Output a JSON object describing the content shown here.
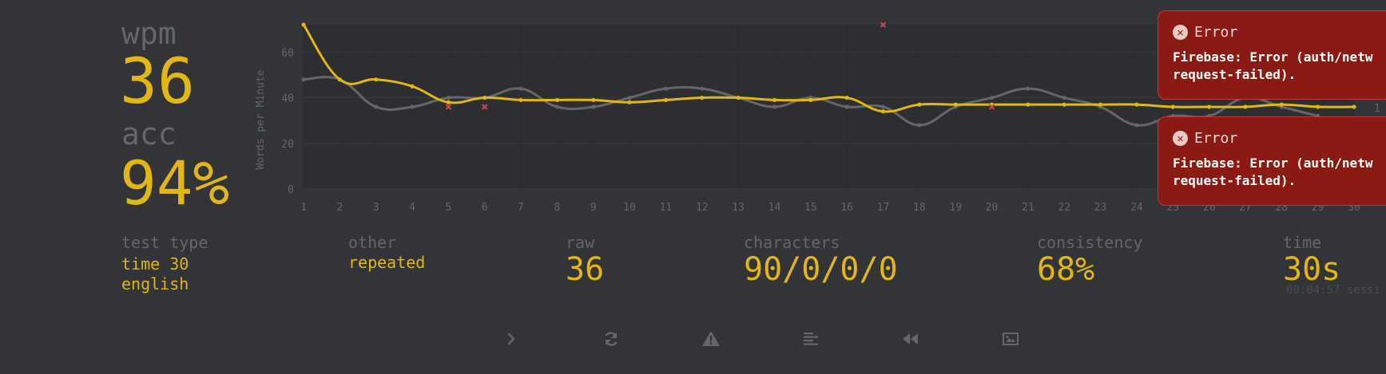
{
  "stats": {
    "wpm_label": "wpm",
    "wpm_value": "36",
    "acc_label": "acc",
    "acc_value": "94%"
  },
  "details": {
    "test_type_label": "test type",
    "test_type_line1": "time 30",
    "test_type_line2": "english",
    "other_label": "other",
    "other_value": "repeated",
    "raw_label": "raw",
    "raw_value": "36",
    "characters_label": "characters",
    "characters_value": "90/0/0/0",
    "consistency_label": "consistency",
    "consistency_value": "68%",
    "time_label": "time",
    "time_value": "30s",
    "session_text": "00:04:57 sessi"
  },
  "toolbar": {
    "icons": [
      "next-test-icon",
      "restart-icon",
      "report-icon",
      "words-history-icon",
      "replay-icon",
      "screenshot-icon"
    ]
  },
  "toasts": [
    {
      "title": "Error",
      "message": "Firebase: Error (auth/netw\nrequest-failed)."
    },
    {
      "title": "Error",
      "message": "Firebase: Error (auth/netw\nrequest-failed)."
    }
  ],
  "colors": {
    "background": "#323437",
    "accent": "#e2b714",
    "sub": "#646669",
    "error": "#ca4754",
    "toast_bg": "#8b1a15"
  },
  "chart_data": {
    "type": "line",
    "ylabel": "Words per Minute",
    "x": [
      1,
      2,
      3,
      4,
      5,
      6,
      7,
      8,
      9,
      10,
      11,
      12,
      13,
      14,
      15,
      16,
      17,
      18,
      19,
      20,
      21,
      22,
      23,
      24,
      25,
      26,
      27,
      28,
      29,
      30
    ],
    "ylim": [
      0,
      72
    ],
    "yticks": [
      0,
      20,
      40,
      60
    ],
    "right_tick": "1",
    "series": [
      {
        "name": "",
        "role": "raw",
        "color": "#646669",
        "values": [
          48,
          48,
          36,
          36,
          40,
          40,
          44,
          36,
          36,
          40,
          44,
          44,
          40,
          36,
          40,
          36,
          36,
          28,
          36,
          40,
          44,
          40,
          36,
          28,
          32,
          32,
          40,
          36,
          32,
          null
        ]
      },
      {
        "name": "",
        "role": "wpm",
        "color": "#e2b714",
        "values": [
          72,
          48,
          48,
          45,
          38,
          40,
          39,
          39,
          39,
          38,
          39,
          40,
          40,
          39,
          39,
          40,
          34,
          37,
          37,
          37,
          37,
          37,
          37,
          37,
          36,
          36,
          36,
          37,
          36,
          36
        ]
      }
    ],
    "errors": [
      {
        "x": 5,
        "y": 36
      },
      {
        "x": 6,
        "y": 36
      },
      {
        "x": 17,
        "y": 72
      },
      {
        "x": 20,
        "y": 36
      }
    ]
  }
}
